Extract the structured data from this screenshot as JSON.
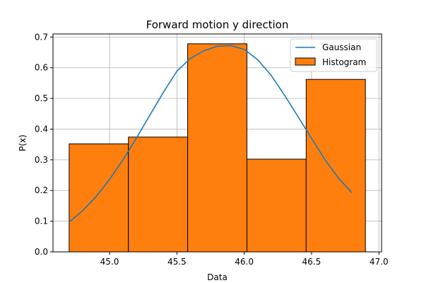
{
  "chart_data": {
    "type": "bar",
    "title": "Forward motion y direction",
    "xlabel": "Data",
    "ylabel": "P(x)",
    "xlim": [
      44.58,
      47.02
    ],
    "ylim": [
      0.0,
      0.71
    ],
    "grid": true,
    "legend_position": "top-right",
    "x_ticks": [
      "45.0",
      "45.5",
      "46.0",
      "46.5",
      "47.0"
    ],
    "y_ticks": [
      "0.0",
      "0.1",
      "0.2",
      "0.3",
      "0.4",
      "0.5",
      "0.6",
      "0.7"
    ],
    "x_tick_values": [
      45.0,
      45.5,
      46.0,
      46.5,
      47.0
    ],
    "y_tick_values": [
      0.0,
      0.1,
      0.2,
      0.3,
      0.4,
      0.5,
      0.6,
      0.7
    ],
    "histogram": {
      "name": "Histogram",
      "color": "#ff7f0e",
      "edge_color": "#000000",
      "bin_edges": [
        44.7,
        45.14,
        45.58,
        46.02,
        46.46,
        46.9
      ],
      "values": [
        0.352,
        0.374,
        0.678,
        0.302,
        0.562
      ]
    },
    "gaussian": {
      "name": "Gaussian",
      "color": "#1f77b4",
      "x": [
        44.7,
        44.8,
        44.9,
        45.0,
        45.1,
        45.2,
        45.3,
        45.4,
        45.5,
        45.6,
        45.7,
        45.8,
        45.9,
        46.0,
        46.1,
        46.2,
        46.3,
        46.4,
        46.5,
        46.6,
        46.7,
        46.8
      ],
      "y": [
        0.097,
        0.134,
        0.18,
        0.236,
        0.3,
        0.371,
        0.446,
        0.52,
        0.589,
        0.63,
        0.655,
        0.67,
        0.672,
        0.66,
        0.626,
        0.575,
        0.51,
        0.44,
        0.37,
        0.3,
        0.24,
        0.193
      ]
    }
  }
}
